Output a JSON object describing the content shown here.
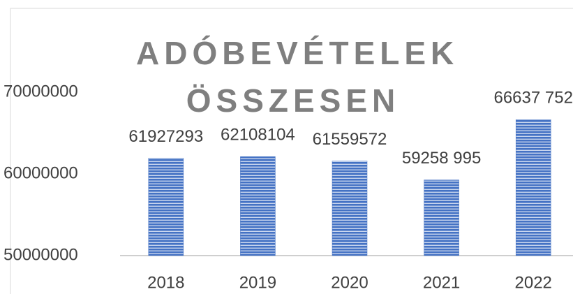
{
  "chart_data": {
    "type": "bar",
    "title": "ADÓBEVÉTELEK ÖSSZESEN",
    "categories": [
      "2018",
      "2019",
      "2020",
      "2021",
      "2022"
    ],
    "values": [
      61927293,
      62108104,
      61559572,
      59258995,
      66637752
    ],
    "value_labels": [
      "61927293",
      "62108104",
      "61559572",
      "59258 995",
      "66637 752"
    ],
    "color": "#4472c4",
    "ylim": [
      50000000,
      70000000
    ],
    "yticks": [
      50000000,
      60000000,
      70000000
    ],
    "grid": false
  }
}
